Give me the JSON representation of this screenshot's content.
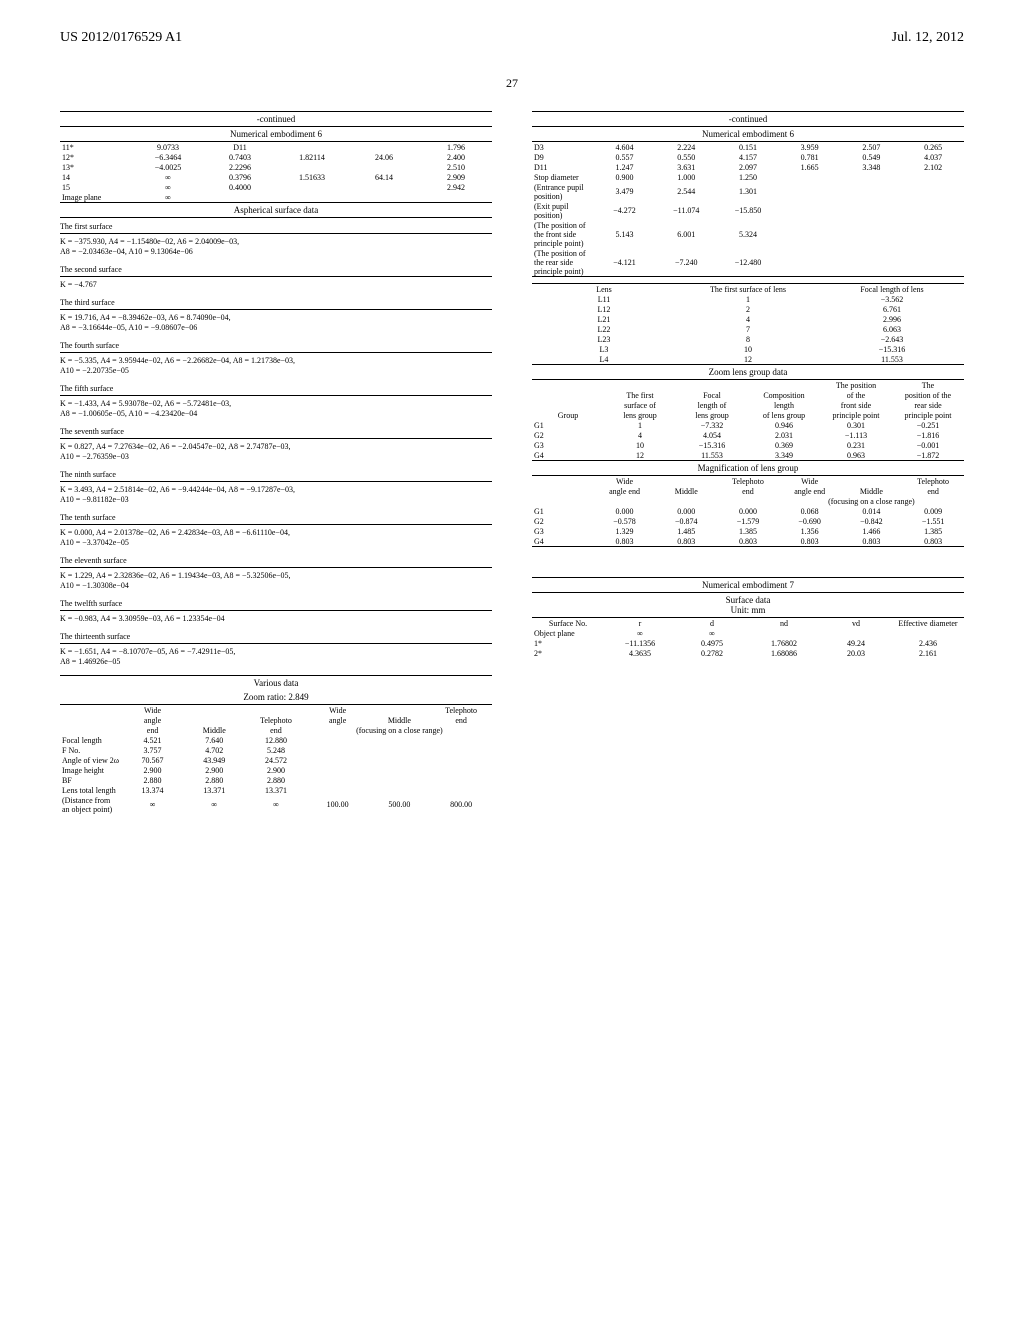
{
  "header": {
    "left": "US 2012/0176529 A1",
    "right": "Jul. 12, 2012",
    "page": "27"
  },
  "continued": "-continued",
  "numEmb6": "Numerical embodiment 6",
  "numEmb7": "Numerical embodiment 7",
  "aspherical": "Aspherical surface data",
  "variousData": "Various data",
  "zoomRatio": "Zoom ratio: 2.849",
  "zoomLensGroup": "Zoom lens group data",
  "magGroup": "Magnification of lens group",
  "surfaceDataUnit": "Surface data\nUnit: mm",
  "leftTop": {
    "rows": [
      [
        "11*",
        "9.0733",
        "D11",
        "",
        "",
        "1.796"
      ],
      [
        "12*",
        "−6.3464",
        "0.7403",
        "1.82114",
        "24.06",
        "2.400"
      ],
      [
        "13*",
        "−4.0025",
        "2.2296",
        "",
        "",
        "2.510"
      ],
      [
        "14",
        "∞",
        "0.3796",
        "1.51633",
        "64.14",
        "2.909"
      ],
      [
        "15",
        "∞",
        "0.4000",
        "",
        "",
        "2.942"
      ],
      [
        "Image plane",
        "∞",
        "",
        "",
        "",
        ""
      ]
    ]
  },
  "surfaces": [
    {
      "label": "The first surface",
      "eq": "K = −375.930, A4 = −1.15480e−02, A6 = 2.04009e−03,\nA8 = −2.03463e−04, A10 = 9.13064e−06"
    },
    {
      "label": "The second surface",
      "eq": "K = −4.767"
    },
    {
      "label": "The third surface",
      "eq": "K = 19.716, A4 = −8.39462e−03, A6 = 8.74090e−04,\nA8 = −3.16644e−05, A10 = −9.08607e−06"
    },
    {
      "label": "The fourth surface",
      "eq": "K = −5.335, A4 = 3.95944e−02, A6 = −2.26682e−04, A8 = 1.21738e−03,\nA10 = −2.20735e−05"
    },
    {
      "label": "The fifth surface",
      "eq": "K = −1.433, A4 = 5.93078e−02, A6 = −5.72481e−03,\nA8 = −1.00605e−05, A10 = −4.23420e−04"
    },
    {
      "label": "The seventh surface",
      "eq": "K = 0.827, A4 = 7.27634e−02, A6 = −2.04547e−02, A8 = 2.74787e−03,\nA10 = −2.76359e−03"
    },
    {
      "label": "The ninth surface",
      "eq": "K = 3.493, A4 = 2.51814e−02, A6 = −9.44244e−04, A8 = −9.17287e−03,\nA10 = −9.81182e−03"
    },
    {
      "label": "The tenth surface",
      "eq": "K = 0.000, A4 = 2.01378e−02, A6 = 2.42834e−03, A8 = −6.61110e−04,\nA10 = −3.37042e−05"
    },
    {
      "label": "The eleventh surface",
      "eq": "K = 1.229, A4 = 2.32836e−02, A6 = 1.19434e−03, A8 = −5.32506e−05,\nA10 = −1.30308e−04"
    },
    {
      "label": "The twelfth surface",
      "eq": "K = −0.983, A4 = 3.30959e−03, A6 = 1.23354e−04"
    },
    {
      "label": "The thirteenth surface",
      "eq": "K = −1.651, A4 = −8.10707e−05, A6 = −7.42911e−05,\nA8 = 1.46926e−05"
    }
  ],
  "variousHdr": {
    "h1": [
      "",
      "Wide",
      "",
      "",
      "Wide",
      "",
      "Telephoto"
    ],
    "h2": [
      "",
      "angle",
      "",
      "Telephoto",
      "angle",
      "Middle",
      "end"
    ],
    "h3": [
      "",
      "end",
      "Middle",
      "end",
      "end",
      "(focusing on a close range)",
      ""
    ]
  },
  "variousRows": [
    [
      "Focal length",
      "4.521",
      "7.640",
      "12.880",
      "",
      "",
      ""
    ],
    [
      "F No.",
      "3.757",
      "4.702",
      "5.248",
      "",
      "",
      ""
    ],
    [
      "Angle of view 2ω",
      "70.567",
      "43.949",
      "24.572",
      "",
      "",
      ""
    ],
    [
      "Image height",
      "2.900",
      "2.900",
      "2.900",
      "",
      "",
      ""
    ],
    [
      "BF",
      "2.880",
      "2.880",
      "2.880",
      "",
      "",
      ""
    ],
    [
      "Lens total length",
      "13.374",
      "13.371",
      "13.371",
      "",
      "",
      ""
    ],
    [
      "(Distance from an object point)",
      "∞",
      "∞",
      "∞",
      "100.00",
      "500.00",
      "800.00"
    ]
  ],
  "rightTop": {
    "rows": [
      [
        "D3",
        "4.604",
        "2.224",
        "0.151",
        "3.959",
        "2.507",
        "0.265"
      ],
      [
        "D9",
        "0.557",
        "0.550",
        "4.157",
        "0.781",
        "0.549",
        "4.037"
      ],
      [
        "D11",
        "1.247",
        "3.631",
        "2.097",
        "1.665",
        "3.348",
        "2.102"
      ],
      [
        "Stop diameter",
        "0.900",
        "1.000",
        "1.250",
        "",
        "",
        ""
      ],
      [
        "(Entrance pupil position)",
        "3.479",
        "2.544",
        "1.301",
        "",
        "",
        ""
      ],
      [
        "(Exit pupil position)",
        "−4.272",
        "−11.074",
        "−15.850",
        "",
        "",
        ""
      ],
      [
        "(The position of the front side principle point)",
        "5.143",
        "6.001",
        "5.324",
        "",
        "",
        ""
      ],
      [
        "(The position of the rear side principle point)",
        "−4.121",
        "−7.240",
        "−12.480",
        "",
        "",
        ""
      ]
    ]
  },
  "lensTable": {
    "hdr": [
      "Lens",
      "The first surface of lens",
      "Focal length of lens"
    ],
    "rows": [
      [
        "L11",
        "1",
        "−3.562"
      ],
      [
        "L12",
        "2",
        "6.761"
      ],
      [
        "L21",
        "4",
        "2.996"
      ],
      [
        "L22",
        "7",
        "6.063"
      ],
      [
        "L23",
        "8",
        "−2.643"
      ],
      [
        "L3",
        "10",
        "−15.316"
      ],
      [
        "L4",
        "12",
        "11.553"
      ]
    ]
  },
  "zoomGroup": {
    "hdr1": [
      "",
      "",
      "",
      "",
      "The position",
      "The"
    ],
    "hdr2": [
      "",
      "The first",
      "Focal",
      "Composition",
      "of the",
      "position of the"
    ],
    "hdr3": [
      "",
      "surface of",
      "length of",
      "length",
      "front side",
      "rear side"
    ],
    "hdr4": [
      "Group",
      "lens group",
      "lens group",
      "of lens group",
      "principle point",
      "principle point"
    ],
    "rows": [
      [
        "G1",
        "1",
        "−7.332",
        "0.946",
        "0.301",
        "−0.251"
      ],
      [
        "G2",
        "4",
        "4.054",
        "2.031",
        "−1.113",
        "−1.816"
      ],
      [
        "G3",
        "10",
        "−15.316",
        "0.369",
        "0.231",
        "−0.001"
      ],
      [
        "G4",
        "12",
        "11.553",
        "3.349",
        "0.963",
        "−1.872"
      ]
    ]
  },
  "mag": {
    "hdr1": [
      "",
      "Wide",
      "",
      "Telephoto",
      "Wide",
      "",
      "Telephoto"
    ],
    "hdr2": [
      "",
      "angle end",
      "Middle",
      "end",
      "angle end",
      "Middle",
      "end"
    ],
    "hdr3": [
      "",
      "",
      "",
      "",
      "(focusing on a close range)",
      "",
      ""
    ],
    "rows": [
      [
        "G1",
        "0.000",
        "0.000",
        "0.000",
        "0.068",
        "0.014",
        "0.009"
      ],
      [
        "G2",
        "−0.578",
        "−0.874",
        "−1.579",
        "−0.690",
        "−0.842",
        "−1.551"
      ],
      [
        "G3",
        "1.329",
        "1.485",
        "1.385",
        "1.356",
        "1.466",
        "1.385"
      ],
      [
        "G4",
        "0.803",
        "0.803",
        "0.803",
        "0.803",
        "0.803",
        "0.803"
      ]
    ]
  },
  "emb7": {
    "hdr": [
      "Surface No.",
      "r",
      "d",
      "nd",
      "vd",
      "Effective diameter"
    ],
    "rows": [
      [
        "Object plane",
        "∞",
        "∞",
        "",
        "",
        ""
      ],
      [
        "1*",
        "−11.1356",
        "0.4975",
        "1.76802",
        "49.24",
        "2.436"
      ],
      [
        "2*",
        "4.3635",
        "0.2782",
        "1.68086",
        "20.03",
        "2.161"
      ]
    ]
  }
}
